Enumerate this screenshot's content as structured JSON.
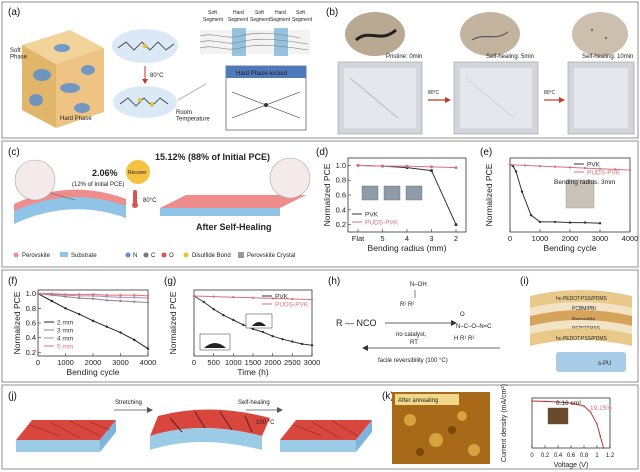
{
  "panels": {
    "a": {
      "label": "(a)",
      "soft_phase": "Soft\nPhase",
      "hard_phase": "Hard Phase",
      "temp": "80°C",
      "room_temp": "Room\nTemperature",
      "segments": [
        "Soft",
        "Hard",
        "Soft",
        "Hard",
        "Soft"
      ],
      "segment_word": "Segment",
      "locked": "Hard Phase-locked"
    },
    "b": {
      "label": "(b)",
      "stages": [
        "Pristine: 0min",
        "Self-healing: 5min",
        "Self-healing: 10min"
      ],
      "temp": "80°C"
    },
    "c": {
      "label": "(c)",
      "pce_low": "2.06%",
      "pce_low_sub": "(12% of Initial PCE)",
      "pce_high": "15.12% (88% of Initial PCE)",
      "recover": "Recover",
      "temp": "80°C",
      "after": "After Self-Healing",
      "legend": [
        "Perovskite",
        "Substrate",
        "N",
        "C",
        "O",
        "Disulfide Bond",
        "Perovskite Crystal"
      ]
    },
    "h": {
      "label": "(h)",
      "reagent": "R — NCO",
      "cond1": "no catalyst,",
      "cond2": "RT",
      "reversible": "facile reversibility (100 °C)"
    },
    "i": {
      "label": "(i)",
      "layers": [
        "hc-PEDOT:PSS/PDMS",
        "PCBM/PBI",
        "Perovskite",
        "PEDOT:PSS",
        "hc-PEDOT:PSS/PDMS"
      ],
      "spu": "s-PU"
    },
    "j": {
      "label": "(j)",
      "stretch": "Stretching",
      "heal": "Self-healing",
      "temp": "100 °C"
    },
    "k": {
      "label": "(k)",
      "after_annealing": "After annealing",
      "inset_area": "0.16 cm²",
      "inset_pce": "19.15%"
    }
  },
  "chart_data": [
    {
      "panel": "(d)",
      "type": "line",
      "xlabel": "Bending radius (mm)",
      "ylabel": "Normalized PCE",
      "categories": [
        "Flat",
        "5",
        "4",
        "3",
        "2"
      ],
      "ylim": [
        0.1,
        1.1
      ],
      "yticks": [
        0.2,
        0.4,
        0.6,
        0.8,
        1.0
      ],
      "legend": "bottom-left",
      "series": [
        {
          "name": "PVK",
          "color": "#333333",
          "values": [
            1.0,
            0.99,
            0.97,
            0.93,
            0.2
          ]
        },
        {
          "name": "PUDS-PVK",
          "color": "#d9727e",
          "values": [
            1.0,
            0.99,
            0.99,
            0.98,
            0.97
          ]
        }
      ]
    },
    {
      "panel": "(e)",
      "type": "line",
      "xlabel": "Bending cycle",
      "ylabel": "Normalized PCE",
      "annotation": "Bending radius: 3mm",
      "xlim": [
        0,
        4000
      ],
      "xticks": [
        0,
        1000,
        2000,
        3000,
        4000
      ],
      "ylim": [
        0,
        1.1
      ],
      "legend": "top-right",
      "series": [
        {
          "name": "PVK",
          "color": "#333333",
          "x": [
            0,
            100,
            200,
            400,
            700,
            1000,
            1500,
            2000,
            2500,
            3000
          ],
          "y": [
            1.0,
            0.98,
            0.9,
            0.6,
            0.25,
            0.15,
            0.15,
            0.14,
            0.14,
            0.13
          ]
        },
        {
          "name": "PUDS-PVK",
          "color": "#d9727e",
          "x": [
            0,
            500,
            1000,
            1500,
            2000,
            2500,
            3000,
            3500,
            4000
          ],
          "y": [
            1.0,
            0.99,
            0.98,
            0.97,
            0.96,
            0.95,
            0.94,
            0.93,
            0.92
          ]
        }
      ]
    },
    {
      "panel": "(f)",
      "type": "line",
      "xlabel": "Bending cycle",
      "ylabel": "Normalized PCE",
      "xlim": [
        0,
        4000
      ],
      "xticks": [
        0,
        1000,
        2000,
        3000,
        4000
      ],
      "ylim": [
        0.15,
        1.05
      ],
      "yticks": [
        0.2,
        0.4,
        0.6,
        0.8,
        1.0
      ],
      "legend": "bottom-left",
      "series": [
        {
          "name": "2 mm",
          "color": "#222222",
          "x": [
            0,
            500,
            1000,
            1500,
            2000,
            2500,
            3000,
            3500,
            4000
          ],
          "y": [
            1.0,
            0.9,
            0.8,
            0.72,
            0.63,
            0.55,
            0.47,
            0.37,
            0.25
          ]
        },
        {
          "name": "3 mm",
          "color": "#888888",
          "x": [
            0,
            500,
            1000,
            1500,
            2000,
            2500,
            3000,
            3500,
            4000
          ],
          "y": [
            1.0,
            0.98,
            0.96,
            0.94,
            0.93,
            0.91,
            0.9,
            0.89,
            0.88
          ]
        },
        {
          "name": "4 mm",
          "color": "#b48ab4",
          "x": [
            0,
            500,
            1000,
            1500,
            2000,
            2500,
            3000,
            3500,
            4000
          ],
          "y": [
            1.0,
            0.99,
            0.98,
            0.97,
            0.97,
            0.96,
            0.95,
            0.95,
            0.94
          ]
        },
        {
          "name": "5 mm",
          "color": "#d9727e",
          "x": [
            0,
            500,
            1000,
            1500,
            2000,
            2500,
            3000,
            3500,
            4000
          ],
          "y": [
            1.0,
            1.0,
            0.99,
            0.99,
            0.99,
            0.98,
            0.98,
            0.98,
            0.97
          ]
        }
      ]
    },
    {
      "panel": "(g)",
      "type": "line",
      "xlabel": "Time (h)",
      "ylabel": "Normalized PCE",
      "xlim": [
        0,
        3000
      ],
      "xticks": [
        0,
        500,
        1000,
        1500,
        2000,
        2500,
        3000
      ],
      "ylim": [
        0,
        1.1
      ],
      "legend": "top-right",
      "series": [
        {
          "name": "PVK",
          "color": "#333333",
          "x": [
            0,
            250,
            500,
            750,
            1000,
            1250,
            1500,
            1750,
            2000,
            2250,
            2500,
            2750,
            3000
          ],
          "y": [
            1.0,
            0.9,
            0.78,
            0.68,
            0.6,
            0.52,
            0.45,
            0.4,
            0.33,
            0.28,
            0.24,
            0.2,
            0.18
          ]
        },
        {
          "name": "PUDS-PVK",
          "color": "#d9727e",
          "x": [
            0,
            500,
            1000,
            1500,
            2000,
            2500,
            3000
          ],
          "y": [
            1.0,
            0.99,
            0.98,
            0.97,
            0.96,
            0.95,
            0.94
          ]
        }
      ]
    },
    {
      "panel": "(k) inset",
      "type": "line",
      "xlabel": "Voltage (V)",
      "ylabel": "Current density (mA/cm²)",
      "xlim": [
        0,
        1.2
      ],
      "xticks": [
        0.0,
        0.2,
        0.4,
        0.6,
        0.8,
        1.0,
        1.2
      ],
      "ylim": [
        0,
        25
      ],
      "series": [
        {
          "name": "",
          "color": "#c03030",
          "x": [
            0,
            0.2,
            0.4,
            0.6,
            0.8,
            0.9,
            1.0,
            1.05,
            1.1
          ],
          "y": [
            23.5,
            23.3,
            23,
            22.5,
            21,
            18,
            12,
            6,
            0
          ]
        }
      ]
    }
  ],
  "colors": {
    "pink": "#d9727e",
    "tile": "#d8463e",
    "blue": "#7fb5da",
    "gold": "#d6a43a"
  }
}
